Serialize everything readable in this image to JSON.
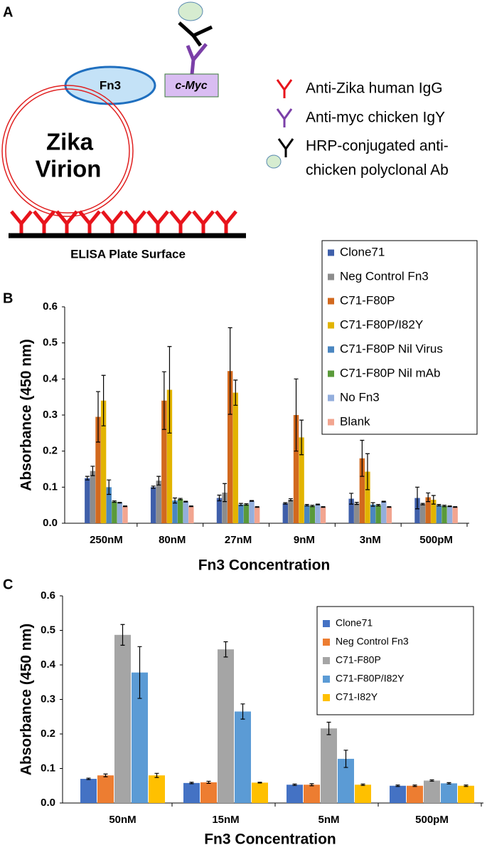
{
  "diagram": {
    "panel_label": "A",
    "fn3": "Fn3",
    "cmyc": "c-Myc",
    "virion_1": "Zika",
    "virion_2": "Virion",
    "plate": "ELISA Plate Surface",
    "legend_1": "Anti-Zika human IgG",
    "legend_2": "Anti-myc chicken IgY",
    "legend_3a": "HRP-conjugated anti-",
    "legend_3b": "chicken polyclonal Ab"
  },
  "chart_data": [
    {
      "type": "bar",
      "panel_label": "B",
      "ylabel": "Absorbance (450 nm)",
      "xlabel": "Fn3 Concentration",
      "legend": "upper right",
      "categories": [
        "250nM",
        "80nM",
        "27nM",
        "9nM",
        "3nM",
        "500pM"
      ],
      "ylim": [
        0,
        0.6
      ],
      "yticks": [
        {
          "value": 0,
          "label": "0.0"
        },
        0.1,
        0.2,
        0.3,
        0.4,
        0.5,
        0.6
      ],
      "series": [
        {
          "name": "Clone71",
          "color": "#3f5faa",
          "values": [
            0.125,
            0.1,
            0.07,
            0.055,
            0.068,
            0.07
          ],
          "errors": [
            0.005,
            0.003,
            0.008,
            0.002,
            0.015,
            0.03
          ]
        },
        {
          "name": "Neg Control Fn3",
          "color": "#8c8c8c",
          "values": [
            0.145,
            0.118,
            0.085,
            0.065,
            0.055,
            0.053
          ],
          "errors": [
            0.013,
            0.012,
            0.025,
            0.003,
            0.003,
            0.002
          ]
        },
        {
          "name": "C71-F80P",
          "color": "#d2691e",
          "values": [
            0.295,
            0.34,
            0.422,
            0.3,
            0.18,
            0.072
          ],
          "errors": [
            0.07,
            0.08,
            0.12,
            0.1,
            0.05,
            0.012
          ]
        },
        {
          "name": "C71-F80P/I82Y",
          "color": "#e2b400",
          "values": [
            0.34,
            0.37,
            0.362,
            0.238,
            0.143,
            0.065
          ],
          "errors": [
            0.07,
            0.12,
            0.035,
            0.048,
            0.05,
            0.012
          ]
        },
        {
          "name": "C71-F80P Nil Virus",
          "color": "#4a86c0",
          "values": [
            0.1,
            0.063,
            0.052,
            0.05,
            0.052,
            0.05
          ],
          "errors": [
            0.02,
            0.007,
            0.003,
            0.002,
            0.005,
            0.002
          ]
        },
        {
          "name": "C71-F80P Nil mAb",
          "color": "#5a9a3a",
          "values": [
            0.06,
            0.067,
            0.052,
            0.048,
            0.05,
            0.048
          ],
          "errors": [
            0.002,
            0.002,
            0.002,
            0.002,
            0.002,
            0.002
          ]
        },
        {
          "name": "No Fn3",
          "color": "#93aedc",
          "values": [
            0.057,
            0.06,
            0.062,
            0.052,
            0.06,
            0.047
          ],
          "errors": [
            0.001,
            0.001,
            0.001,
            0.001,
            0.001,
            0.001
          ]
        },
        {
          "name": "Blank",
          "color": "#f2a590",
          "values": [
            0.047,
            0.047,
            0.045,
            0.045,
            0.045,
            0.045
          ],
          "errors": [
            0.001,
            0.001,
            0.001,
            0.001,
            0.001,
            0.001
          ]
        }
      ]
    },
    {
      "type": "bar",
      "panel_label": "C",
      "ylabel": "Absorbance (450 nm)",
      "xlabel": "Fn3 Concentration",
      "legend": "upper right",
      "categories": [
        "50nM",
        "15nM",
        "5nM",
        "500pM"
      ],
      "ylim": [
        0,
        0.6
      ],
      "yticks": [
        {
          "value": 0,
          "label": "0.0"
        },
        0.1,
        0.2,
        0.3,
        0.4,
        0.5,
        0.6
      ],
      "series": [
        {
          "name": "Clone71",
          "color": "#4472c4",
          "values": [
            0.07,
            0.058,
            0.053,
            0.05
          ],
          "errors": [
            0.002,
            0.002,
            0.002,
            0.002
          ]
        },
        {
          "name": "Neg Control Fn3",
          "color": "#ed7d31",
          "values": [
            0.08,
            0.06,
            0.053,
            0.05
          ],
          "errors": [
            0.004,
            0.003,
            0.003,
            0.002
          ]
        },
        {
          "name": "C71-F80P",
          "color": "#a5a5a5",
          "values": [
            0.487,
            0.445,
            0.216,
            0.065
          ],
          "errors": [
            0.03,
            0.022,
            0.018,
            0.002
          ]
        },
        {
          "name": "C71-F80P/I82Y",
          "color": "#5b9bd5",
          "values": [
            0.378,
            0.265,
            0.128,
            0.057
          ],
          "errors": [
            0.075,
            0.022,
            0.025,
            0.002
          ]
        },
        {
          "name": "C71-I82Y",
          "color": "#ffc000",
          "values": [
            0.08,
            0.059,
            0.053,
            0.05
          ],
          "errors": [
            0.006,
            0.001,
            0.002,
            0.002
          ]
        }
      ]
    }
  ]
}
